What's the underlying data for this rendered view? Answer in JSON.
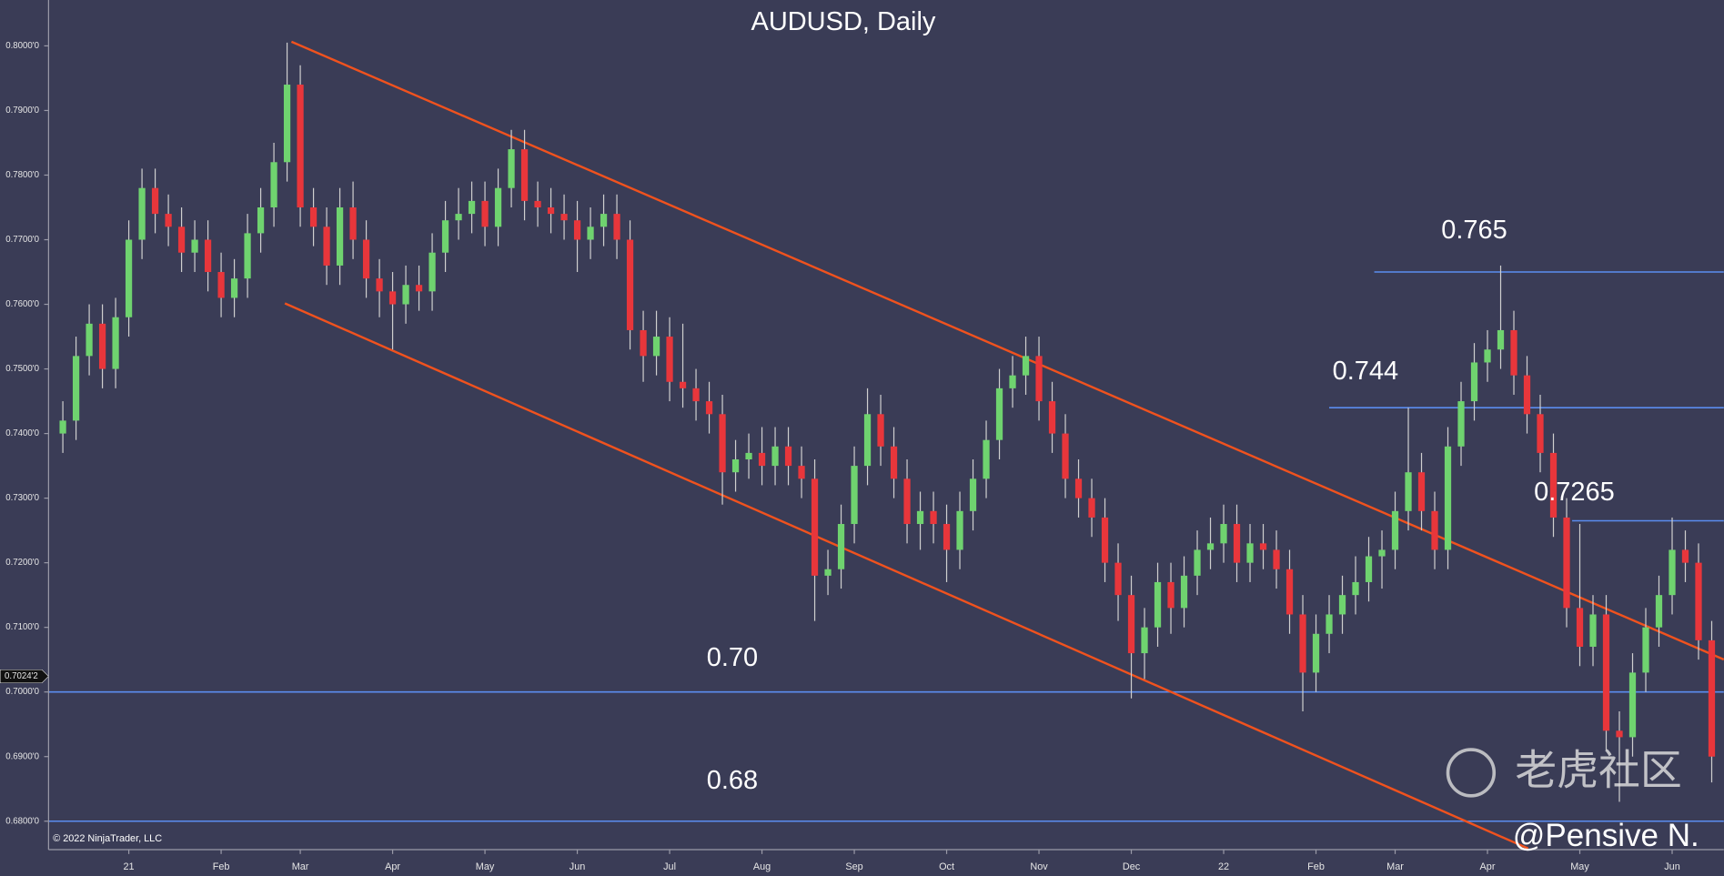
{
  "chart_data": {
    "type": "candlestick",
    "title": "AUDUSD, Daily",
    "categories": [
      null,
      null,
      null,
      null,
      null,
      "21",
      null,
      null,
      null,
      null,
      null,
      null,
      "Feb",
      null,
      null,
      null,
      null,
      null,
      "Mar",
      null,
      null,
      null,
      null,
      null,
      null,
      "Apr",
      null,
      null,
      null,
      null,
      null,
      null,
      "May",
      null,
      null,
      null,
      null,
      null,
      null,
      "Jun",
      null,
      null,
      null,
      null,
      null,
      null,
      "Jul",
      null,
      null,
      null,
      null,
      null,
      null,
      "Aug",
      null,
      null,
      null,
      null,
      null,
      null,
      "Sep",
      null,
      null,
      null,
      null,
      null,
      null,
      "Oct",
      null,
      null,
      null,
      null,
      null,
      null,
      "Nov",
      null,
      null,
      null,
      null,
      null,
      null,
      "Dec",
      null,
      null,
      null,
      null,
      null,
      null,
      "22",
      null,
      null,
      null,
      null,
      null,
      null,
      "Feb",
      null,
      null,
      null,
      null,
      null,
      "Mar",
      null,
      null,
      null,
      null,
      null,
      null,
      "Apr",
      null,
      null,
      null,
      null,
      null,
      null,
      "May",
      null,
      null,
      null,
      null,
      null,
      null,
      "Jun",
      null,
      null,
      null
    ],
    "open": [
      0.74,
      0.742,
      0.752,
      0.757,
      0.75,
      0.758,
      0.77,
      0.778,
      0.774,
      0.772,
      0.768,
      0.77,
      0.765,
      0.761,
      0.764,
      0.771,
      0.775,
      0.782,
      0.794,
      0.775,
      0.772,
      0.766,
      0.775,
      0.77,
      0.764,
      0.762,
      0.76,
      0.763,
      0.762,
      0.768,
      0.773,
      0.774,
      0.776,
      0.772,
      0.778,
      0.784,
      0.776,
      0.775,
      0.774,
      0.773,
      0.77,
      0.772,
      0.774,
      0.77,
      0.756,
      0.752,
      0.755,
      0.748,
      0.747,
      0.745,
      0.743,
      0.734,
      0.736,
      0.737,
      0.735,
      0.738,
      0.735,
      0.733,
      0.718,
      0.719,
      0.726,
      0.735,
      0.743,
      0.738,
      0.733,
      0.726,
      0.728,
      0.726,
      0.722,
      0.728,
      0.733,
      0.739,
      0.747,
      0.749,
      0.752,
      0.745,
      0.74,
      0.733,
      0.73,
      0.727,
      0.72,
      0.715,
      0.706,
      0.71,
      0.717,
      0.713,
      0.718,
      0.722,
      0.723,
      0.726,
      0.72,
      0.723,
      0.722,
      0.719,
      0.712,
      0.703,
      0.709,
      0.712,
      0.715,
      0.717,
      0.721,
      0.722,
      0.728,
      0.734,
      0.728,
      0.722,
      0.738,
      0.745,
      0.751,
      0.753,
      0.756,
      0.749,
      0.743,
      0.737,
      0.727,
      0.713,
      0.707,
      0.712,
      0.694,
      0.693,
      0.703,
      0.71,
      0.715,
      0.722,
      0.72,
      0.708
    ],
    "high": [
      0.745,
      0.755,
      0.76,
      0.76,
      0.761,
      0.773,
      0.781,
      0.781,
      0.777,
      0.775,
      0.773,
      0.773,
      0.768,
      0.767,
      0.774,
      0.778,
      0.785,
      0.8005,
      0.797,
      0.778,
      0.775,
      0.778,
      0.779,
      0.773,
      0.767,
      0.765,
      0.766,
      0.766,
      0.771,
      0.776,
      0.778,
      0.779,
      0.779,
      0.781,
      0.787,
      0.787,
      0.779,
      0.778,
      0.777,
      0.776,
      0.775,
      0.777,
      0.777,
      0.773,
      0.759,
      0.759,
      0.758,
      0.757,
      0.75,
      0.748,
      0.746,
      0.739,
      0.74,
      0.741,
      0.741,
      0.741,
      0.738,
      0.736,
      0.722,
      0.729,
      0.738,
      0.747,
      0.746,
      0.741,
      0.736,
      0.731,
      0.731,
      0.729,
      0.731,
      0.736,
      0.742,
      0.75,
      0.752,
      0.755,
      0.755,
      0.748,
      0.743,
      0.736,
      0.733,
      0.73,
      0.723,
      0.718,
      0.713,
      0.72,
      0.72,
      0.721,
      0.725,
      0.727,
      0.729,
      0.729,
      0.726,
      0.726,
      0.725,
      0.722,
      0.715,
      0.712,
      0.715,
      0.718,
      0.721,
      0.724,
      0.725,
      0.731,
      0.744,
      0.737,
      0.731,
      0.741,
      0.748,
      0.754,
      0.756,
      0.766,
      0.759,
      0.752,
      0.746,
      0.74,
      0.73,
      0.726,
      0.715,
      0.715,
      0.697,
      0.706,
      0.713,
      0.718,
      0.727,
      0.725,
      0.723,
      0.711
    ],
    "low": [
      0.737,
      0.739,
      0.749,
      0.747,
      0.747,
      0.755,
      0.767,
      0.771,
      0.769,
      0.765,
      0.765,
      0.762,
      0.758,
      0.758,
      0.761,
      0.768,
      0.772,
      0.779,
      0.772,
      0.769,
      0.763,
      0.763,
      0.767,
      0.761,
      0.758,
      0.753,
      0.757,
      0.759,
      0.759,
      0.765,
      0.77,
      0.771,
      0.769,
      0.769,
      0.775,
      0.773,
      0.772,
      0.771,
      0.77,
      0.765,
      0.767,
      0.769,
      0.767,
      0.753,
      0.748,
      0.749,
      0.745,
      0.744,
      0.742,
      0.74,
      0.729,
      0.731,
      0.733,
      0.732,
      0.732,
      0.732,
      0.73,
      0.711,
      0.715,
      0.716,
      0.723,
      0.732,
      0.735,
      0.73,
      0.723,
      0.722,
      0.723,
      0.717,
      0.719,
      0.725,
      0.73,
      0.736,
      0.744,
      0.746,
      0.742,
      0.737,
      0.73,
      0.727,
      0.724,
      0.717,
      0.711,
      0.699,
      0.702,
      0.707,
      0.709,
      0.71,
      0.715,
      0.719,
      0.72,
      0.717,
      0.717,
      0.719,
      0.716,
      0.709,
      0.697,
      0.7,
      0.706,
      0.709,
      0.712,
      0.714,
      0.716,
      0.719,
      0.725,
      0.725,
      0.719,
      0.719,
      0.735,
      0.742,
      0.748,
      0.75,
      0.746,
      0.74,
      0.734,
      0.724,
      0.71,
      0.704,
      0.704,
      0.691,
      0.683,
      0.69,
      0.7,
      0.707,
      0.712,
      0.717,
      0.705,
      0.686
    ],
    "close": [
      0.742,
      0.752,
      0.757,
      0.75,
      0.758,
      0.77,
      0.778,
      0.774,
      0.772,
      0.768,
      0.77,
      0.765,
      0.761,
      0.764,
      0.771,
      0.775,
      0.782,
      0.794,
      0.775,
      0.772,
      0.766,
      0.775,
      0.77,
      0.764,
      0.762,
      0.76,
      0.763,
      0.762,
      0.768,
      0.773,
      0.774,
      0.776,
      0.772,
      0.778,
      0.784,
      0.776,
      0.775,
      0.774,
      0.773,
      0.77,
      0.772,
      0.774,
      0.77,
      0.756,
      0.752,
      0.755,
      0.748,
      0.747,
      0.745,
      0.743,
      0.734,
      0.736,
      0.737,
      0.735,
      0.738,
      0.735,
      0.733,
      0.718,
      0.719,
      0.726,
      0.735,
      0.743,
      0.738,
      0.733,
      0.726,
      0.728,
      0.726,
      0.722,
      0.728,
      0.733,
      0.739,
      0.747,
      0.749,
      0.752,
      0.745,
      0.74,
      0.733,
      0.73,
      0.727,
      0.72,
      0.715,
      0.706,
      0.71,
      0.717,
      0.713,
      0.718,
      0.722,
      0.723,
      0.726,
      0.72,
      0.723,
      0.722,
      0.719,
      0.712,
      0.703,
      0.709,
      0.712,
      0.715,
      0.717,
      0.721,
      0.722,
      0.728,
      0.734,
      0.728,
      0.722,
      0.738,
      0.745,
      0.751,
      0.753,
      0.756,
      0.749,
      0.743,
      0.737,
      0.727,
      0.713,
      0.707,
      0.712,
      0.694,
      0.693,
      0.703,
      0.71,
      0.715,
      0.722,
      0.72,
      0.708,
      0.69
    ],
    "up_color": "#6fd36f",
    "down_color": "#e8363b",
    "wick_color": "#cfcfcf",
    "ylim": [
      0.6756,
      0.8071
    ],
    "yticks": [
      {
        "value": 0.68,
        "label": "0.6800'0"
      },
      {
        "value": 0.69,
        "label": "0.6900'0"
      },
      {
        "value": 0.7,
        "label": "0.7000'0"
      },
      {
        "value": 0.71,
        "label": "0.7100'0"
      },
      {
        "value": 0.72,
        "label": "0.7200'0"
      },
      {
        "value": 0.73,
        "label": "0.7300'0"
      },
      {
        "value": 0.74,
        "label": "0.7400'0"
      },
      {
        "value": 0.75,
        "label": "0.7500'0"
      },
      {
        "value": 0.76,
        "label": "0.7600'0"
      },
      {
        "value": 0.77,
        "label": "0.7700'0"
      },
      {
        "value": 0.78,
        "label": "0.7800'0"
      },
      {
        "value": 0.79,
        "label": "0.7900'0"
      },
      {
        "value": 0.8,
        "label": "0.8000'0"
      }
    ],
    "last_price": {
      "value": 0.70242,
      "label": "0.7024'2"
    },
    "levels": [
      {
        "value": 0.7,
        "label": "0.70"
      },
      {
        "value": 0.68,
        "label": "0.68"
      },
      {
        "value": 0.744,
        "label": "0.744"
      },
      {
        "value": 0.765,
        "label": "0.765"
      },
      {
        "value": 0.7265,
        "label": "0.7265"
      }
    ],
    "level_color": "#5b8def",
    "channel_color": "#f0521e",
    "copyright": "© 2022 NinjaTrader, LLC",
    "watermark": "老虎社区",
    "author": "@Pensive N."
  }
}
